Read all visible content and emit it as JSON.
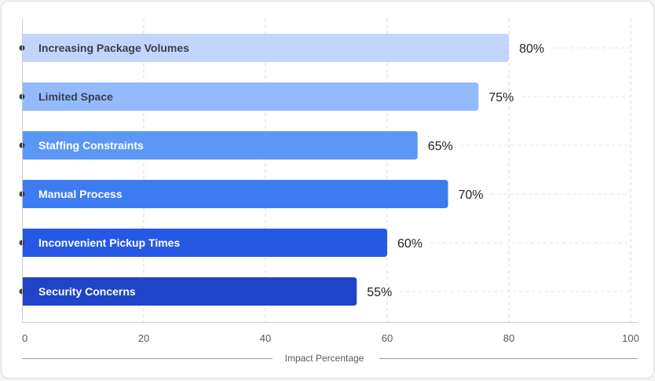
{
  "chart_data": {
    "type": "bar",
    "orientation": "horizontal",
    "categories": [
      "Increasing Package Volumes",
      "Limited Space",
      "Staffing Constraints",
      "Manual Process",
      "Inconvenient Pickup Times",
      "Security Concerns"
    ],
    "values": [
      80,
      75,
      65,
      70,
      60,
      55
    ],
    "value_labels": [
      "80%",
      "75%",
      "65%",
      "70%",
      "60%",
      "55%"
    ],
    "bar_colors": [
      "#c2d6fd",
      "#93bbfc",
      "#5b98f6",
      "#3d7cf0",
      "#2658e3",
      "#1f43c9"
    ],
    "label_colors": [
      "#3a3f48",
      "#3a3f48",
      "#ffffff",
      "#ffffff",
      "#ffffff",
      "#ffffff"
    ],
    "xlabel": "Impact Percentage",
    "ylabel": "",
    "xlim": [
      0,
      100
    ],
    "xticks": [
      0,
      20,
      40,
      60,
      80,
      100
    ],
    "xtick_labels": [
      "0",
      "20",
      "40",
      "60",
      "80",
      "100"
    ],
    "grid": true
  }
}
